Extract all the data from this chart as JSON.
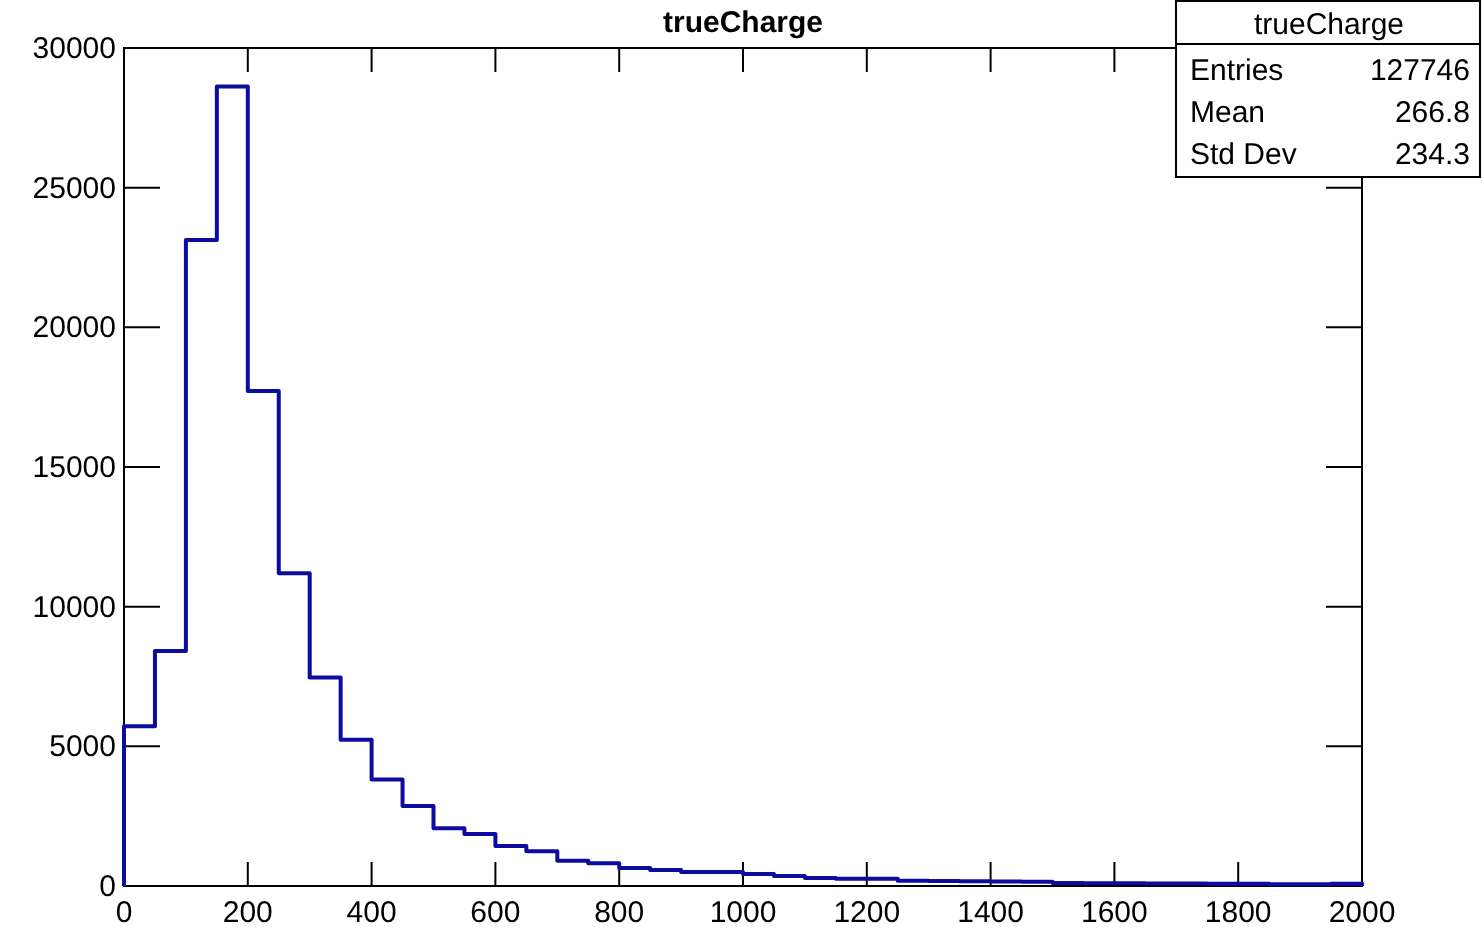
{
  "chart_data": {
    "type": "histogram",
    "title": "trueCharge",
    "bins": [
      0,
      50,
      100,
      150,
      200,
      250,
      300,
      350,
      400,
      450,
      500,
      550,
      600,
      650,
      700,
      750,
      800,
      850,
      900,
      950,
      1000,
      1050,
      1100,
      1150,
      1200,
      1250,
      1300,
      1350,
      1400,
      1450,
      1500,
      1550,
      1600,
      1650,
      1700,
      1750,
      1800,
      1850,
      1900,
      1950,
      2000
    ],
    "values": [
      5720,
      8410,
      23130,
      28620,
      17720,
      11200,
      7460,
      5240,
      3810,
      2860,
      2070,
      1860,
      1430,
      1240,
      900,
      810,
      640,
      570,
      500,
      500,
      430,
      360,
      290,
      260,
      260,
      190,
      180,
      170,
      160,
      150,
      110,
      100,
      100,
      90,
      90,
      80,
      80,
      60,
      60,
      80
    ],
    "color": "#0c0ca0",
    "xlim": [
      0,
      2000
    ],
    "xticks": [
      0,
      200,
      400,
      600,
      800,
      1000,
      1200,
      1400,
      1600,
      1800,
      2000
    ],
    "ylim": [
      0,
      30000
    ],
    "yticks": [
      0,
      5000,
      10000,
      15000,
      20000,
      25000,
      30000
    ],
    "grid": false,
    "annotations": [
      "trueCharge",
      "Entries",
      "127746",
      "Mean",
      "266.8",
      "Std Dev",
      "234.3"
    ]
  }
}
